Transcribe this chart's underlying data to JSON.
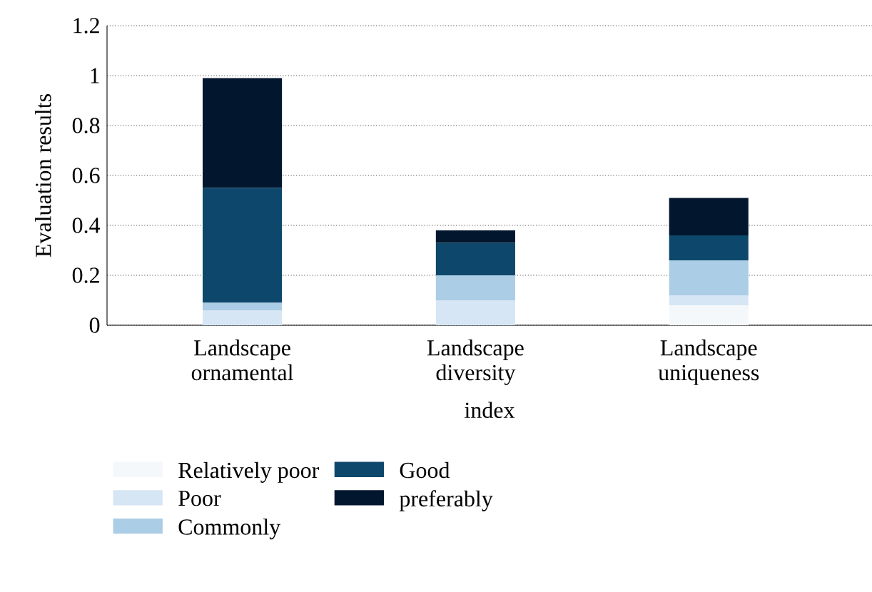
{
  "chart_data": {
    "type": "bar",
    "stacked": true,
    "xlabel": "index",
    "ylabel": "Evaluation results",
    "categories": [
      "Landscape ornamental",
      "Landscape diversity",
      "Landscape uniqueness"
    ],
    "series": [
      {
        "name": "Relatively poor",
        "color": "#f5f8fb",
        "values": [
          0,
          0,
          0.08
        ]
      },
      {
        "name": "Poor",
        "color": "#d6e6f4",
        "values": [
          0.06,
          0.1,
          0.04
        ]
      },
      {
        "name": "Commonly",
        "color": "#abcde5",
        "values": [
          0.03,
          0.1,
          0.14
        ]
      },
      {
        "name": "Good",
        "color": "#0d476b",
        "values": [
          0.46,
          0.13,
          0.1
        ]
      },
      {
        "name": "preferably",
        "color": "#02162e",
        "values": [
          0.44,
          0.05,
          0.15
        ]
      }
    ],
    "ylim": [
      0,
      1.2
    ],
    "yticks": [
      0,
      0.2,
      0.4,
      0.6,
      0.8,
      1,
      1.2
    ],
    "grid": "y",
    "legend": "bottom"
  }
}
